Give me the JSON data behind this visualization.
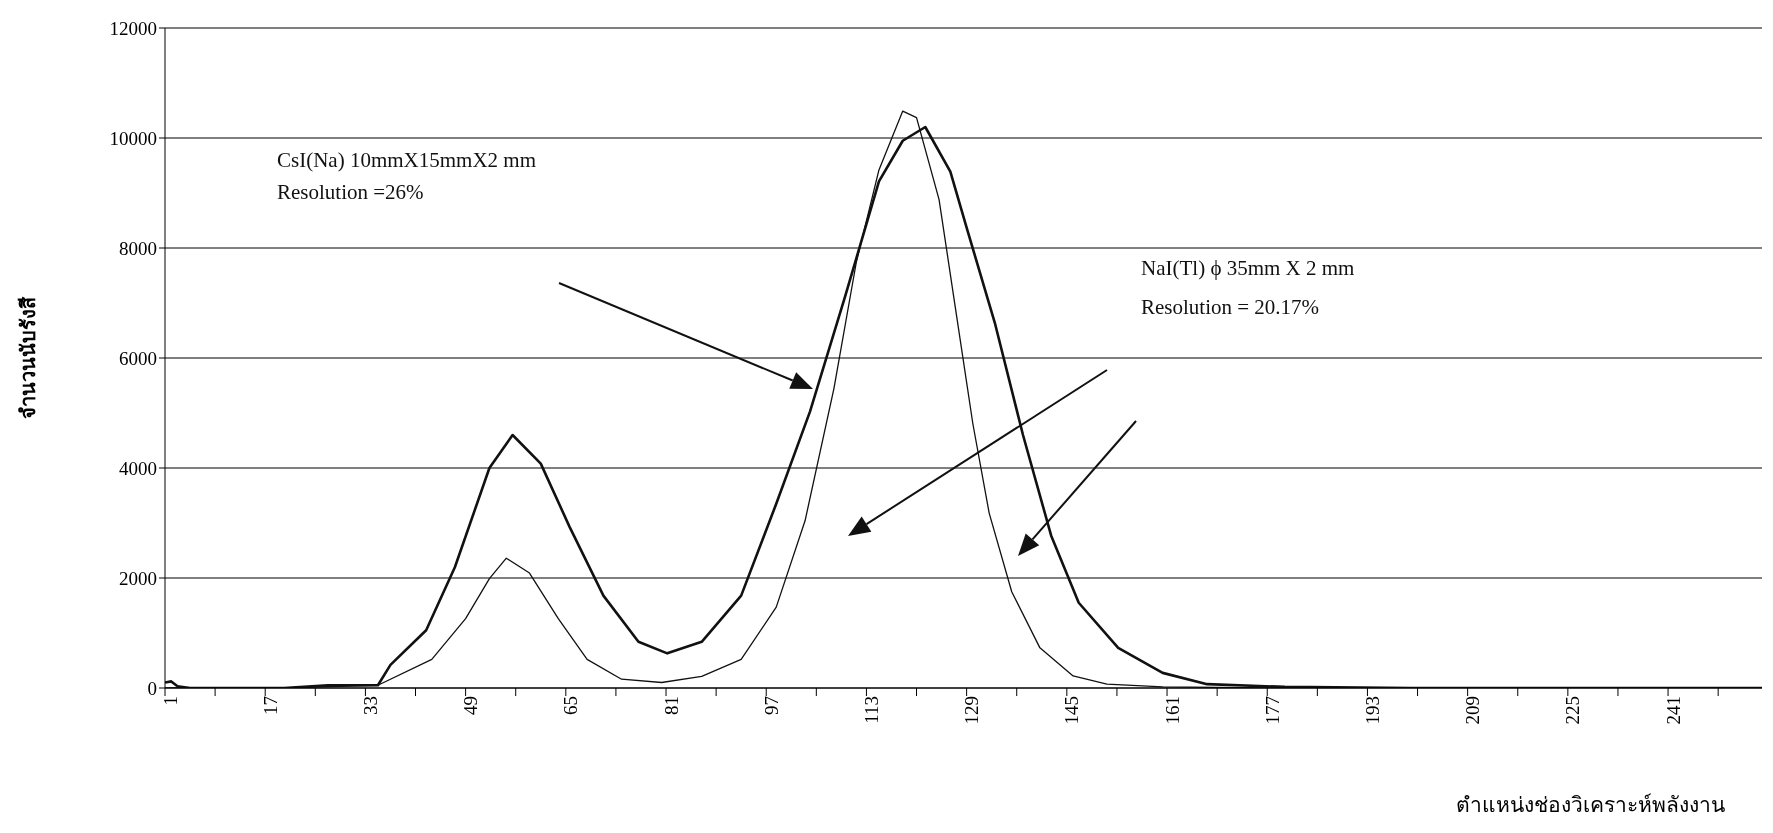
{
  "chart_data": {
    "type": "line",
    "xlabel": "ตำแหน่งช่องวิเคราะห์พลังงาน",
    "ylabel": "จำนวนนับรังสี",
    "annotations": [
      "CsI(Na) 10mmX15mmX2 mm",
      "Resolution =26%",
      "NaI(Tl) ϕ 35mm X 2 mm",
      "Resolution = 20.17%"
    ],
    "xlim": [
      1,
      256
    ],
    "xticks": [
      1,
      {
        "value": 9,
        "label": null
      },
      17,
      {
        "value": 25,
        "label": null
      },
      33,
      {
        "value": 41,
        "label": null
      },
      49,
      {
        "value": 57,
        "label": null
      },
      65,
      {
        "value": 73,
        "label": null
      },
      81,
      {
        "value": 89,
        "label": null
      },
      97,
      {
        "value": 105,
        "label": null
      },
      113,
      {
        "value": 121,
        "label": null
      },
      129,
      {
        "value": 137,
        "label": null
      },
      145,
      {
        "value": 153,
        "label": null
      },
      161,
      {
        "value": 169,
        "label": null
      },
      177,
      {
        "value": 185,
        "label": null
      },
      193,
      {
        "value": 201,
        "label": null
      },
      209,
      {
        "value": 217,
        "label": null
      },
      225,
      {
        "value": 233,
        "label": null
      },
      241,
      {
        "value": 249,
        "label": null
      }
    ],
    "ylim": [
      0,
      12000
    ],
    "yticks": [
      0,
      2000,
      4000,
      6000,
      8000,
      10000,
      12000
    ],
    "grid": "y",
    "series": [
      {
        "color": "#111111",
        "x": [
          1,
          2,
          3,
          5,
          10,
          20,
          27,
          35,
          37,
          42.7,
          47.3,
          52.8,
          56.5,
          61,
          65.6,
          71,
          76.6,
          81.2,
          86.7,
          93,
          98.6,
          104,
          109.6,
          115,
          118.8,
          122.4,
          126.4,
          129,
          133.5,
          138,
          142.5,
          146.9,
          153.2,
          160.3,
          167.4,
          179.8,
          200,
          230,
          256
        ],
        "values": [
          100,
          120,
          30,
          0,
          0,
          0,
          50,
          50,
          420,
          1050,
          2200,
          4000,
          4600,
          4080,
          2930,
          1680,
          840,
          630,
          840,
          1680,
          3350,
          5030,
          7120,
          9210,
          9950,
          10200,
          9390,
          8370,
          6640,
          4600,
          2770,
          1550,
          730,
          275,
          70,
          20,
          0,
          0,
          0
        ]
      },
      {
        "color": "#111111",
        "x": [
          1,
          10,
          20,
          35,
          43.6,
          49,
          52.8,
          55.5,
          59.2,
          63.8,
          68.4,
          73.9,
          80.3,
          86.7,
          93,
          98.6,
          103.2,
          107.8,
          111.4,
          115,
          118.8,
          121,
          124.6,
          127.3,
          130,
          132.6,
          136.2,
          140.7,
          146,
          151.4,
          160.3,
          180,
          220,
          256
        ],
        "values": [
          0,
          0,
          0,
          50,
          520,
          1260,
          1990,
          2360,
          2090,
          1260,
          520,
          160,
          100,
          210,
          520,
          1470,
          3040,
          5440,
          7750,
          9420,
          10490,
          10370,
          8880,
          6840,
          4800,
          3180,
          1750,
          730,
          220,
          70,
          20,
          0,
          0,
          0
        ]
      }
    ]
  }
}
